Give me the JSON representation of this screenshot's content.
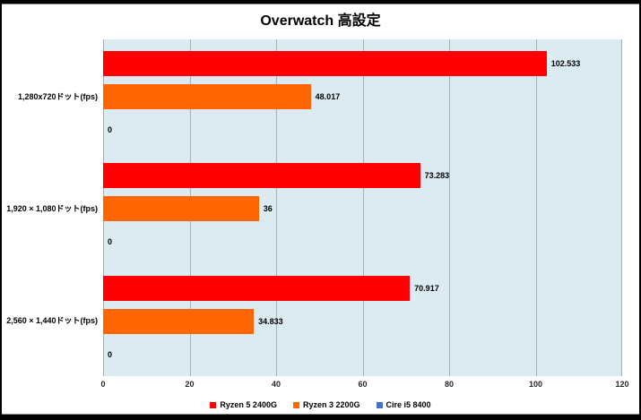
{
  "title": "Overwatch 高設定",
  "colors": {
    "series_red": "#ff0000",
    "series_orange": "#ff6600",
    "series_blue": "#4472c4",
    "plot_background": "#dcebf2",
    "gridline": "#a3b2ba",
    "frame": "#000000"
  },
  "chart_data": {
    "type": "bar",
    "orientation": "horizontal",
    "title": "Overwatch 高設定",
    "categories": [
      "1,280x720ドット(fps)",
      "1,920 × 1,080ドット(fps)",
      "2,560 × 1,440ドット(fps)"
    ],
    "series": [
      {
        "name": "Ryzen 5 2400G",
        "color": "#ff0000",
        "values": [
          102.533,
          73.283,
          70.917
        ],
        "labels": [
          "102.533",
          "73.283",
          "70.917"
        ]
      },
      {
        "name": "Ryzen 3 2200G",
        "color": "#ff6600",
        "values": [
          48.017,
          36,
          34.833
        ],
        "labels": [
          "48.017",
          "36",
          "34.833"
        ]
      },
      {
        "name": "Cire i5 8400",
        "color": "#4472c4",
        "values": [
          0,
          0,
          0
        ],
        "labels": [
          "0",
          "0",
          "0"
        ]
      }
    ],
    "xlim": [
      0,
      120
    ],
    "xticks": [
      0,
      20,
      40,
      60,
      80,
      100,
      120
    ],
    "grid": true,
    "legend_position": "bottom"
  }
}
